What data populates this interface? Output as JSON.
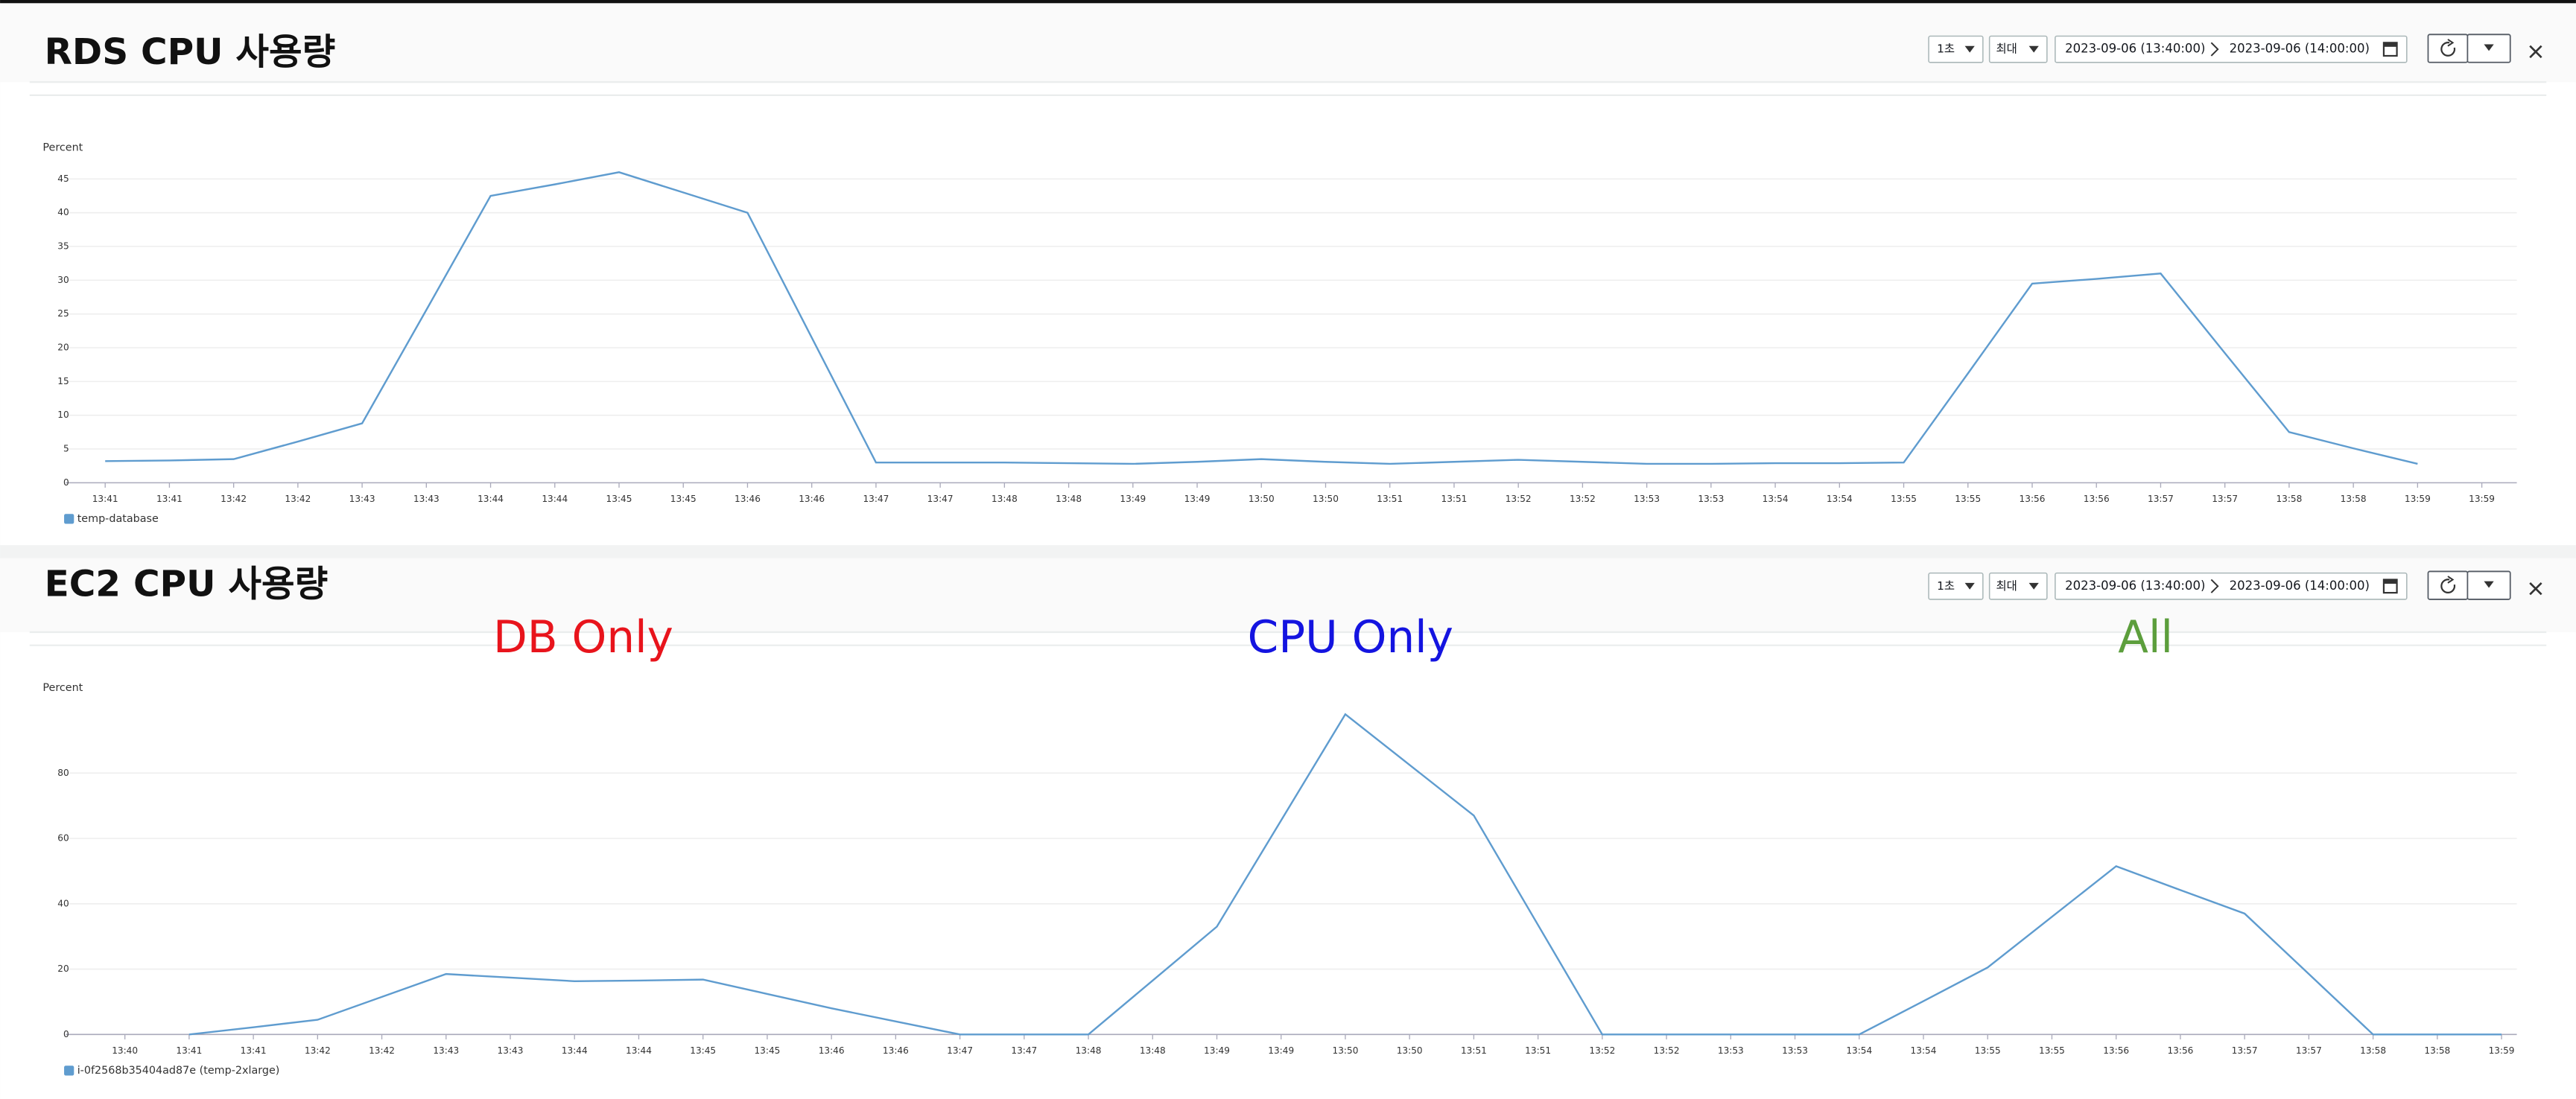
{
  "chart_data": [
    {
      "type": "line",
      "title": "RDS CPU 사용량",
      "controls": {
        "period": "1초",
        "stat": "최대",
        "start": "2023-09-06 (13:40:00)",
        "end": "2023-09-06 (14:00:00)"
      },
      "ylabel": "Percent",
      "categories": [
        "13:41",
        "13:41",
        "13:42",
        "13:42",
        "13:43",
        "13:43",
        "13:44",
        "13:44",
        "13:45",
        "13:45",
        "13:46",
        "13:46",
        "13:47",
        "13:47",
        "13:48",
        "13:48",
        "13:49",
        "13:49",
        "13:50",
        "13:50",
        "13:51",
        "13:51",
        "13:52",
        "13:52",
        "13:53",
        "13:53",
        "13:54",
        "13:54",
        "13:55",
        "13:55",
        "13:56",
        "13:56",
        "13:57",
        "13:57",
        "13:58",
        "13:58",
        "13:59",
        "13:59"
      ],
      "series": [
        {
          "name": "temp-database",
          "color": "#5f9ccf",
          "values": [
            3.2,
            3.3,
            3.5,
            6.1,
            8.8,
            25.6,
            42.5,
            44.2,
            46,
            43,
            40,
            21.5,
            3,
            3,
            3,
            2.9,
            2.8,
            3.1,
            3.5,
            3.1,
            2.8,
            3.1,
            3.4,
            3.1,
            2.8,
            2.8,
            2.9,
            2.9,
            3,
            16.2,
            29.5,
            30.2,
            31,
            19.2,
            7.5,
            5.1,
            2.8,
            null
          ]
        }
      ],
      "ylim": [
        0,
        48
      ],
      "yticks": [
        0,
        5,
        10,
        15,
        20,
        25,
        30,
        35,
        40,
        45
      ],
      "grid": true
    },
    {
      "type": "line",
      "title": "EC2 CPU 사용량",
      "controls": {
        "period": "1초",
        "stat": "최대",
        "start": "2023-09-06 (13:40:00)",
        "end": "2023-09-06 (14:00:00)"
      },
      "ylabel": "Percent",
      "annotations": [
        {
          "text": "DB Only",
          "color": "#e8141c"
        },
        {
          "text": "CPU Only",
          "color": "#1414e0"
        },
        {
          "text": "All",
          "color": "#5c9e3c"
        }
      ],
      "categories": [
        "13:40",
        "13:41",
        "13:41",
        "13:42",
        "13:42",
        "13:43",
        "13:43",
        "13:44",
        "13:44",
        "13:45",
        "13:45",
        "13:46",
        "13:46",
        "13:47",
        "13:47",
        "13:48",
        "13:48",
        "13:49",
        "13:49",
        "13:50",
        "13:50",
        "13:51",
        "13:51",
        "13:52",
        "13:52",
        "13:53",
        "13:53",
        "13:54",
        "13:54",
        "13:55",
        "13:55",
        "13:56",
        "13:56",
        "13:57",
        "13:57",
        "13:58",
        "13:58",
        "13:59"
      ],
      "series": [
        {
          "name": "i-0f2568b35404ad87e (temp-2xlarge)",
          "color": "#5f9ccf",
          "values": [
            null,
            0,
            2.2,
            4.5,
            11.5,
            18.5,
            17.4,
            16.3,
            16.5,
            16.8,
            12.4,
            8,
            4,
            0,
            0,
            0,
            16.5,
            33,
            65.5,
            98,
            82.5,
            67,
            33.5,
            0,
            0,
            0,
            0,
            0,
            10.2,
            20.5,
            36,
            51.5,
            44.2,
            37,
            18.5,
            0,
            0,
            0
          ]
        }
      ],
      "ylim": [
        0,
        100
      ],
      "yticks": [
        0,
        20,
        40,
        60,
        80
      ],
      "grid": true
    }
  ]
}
